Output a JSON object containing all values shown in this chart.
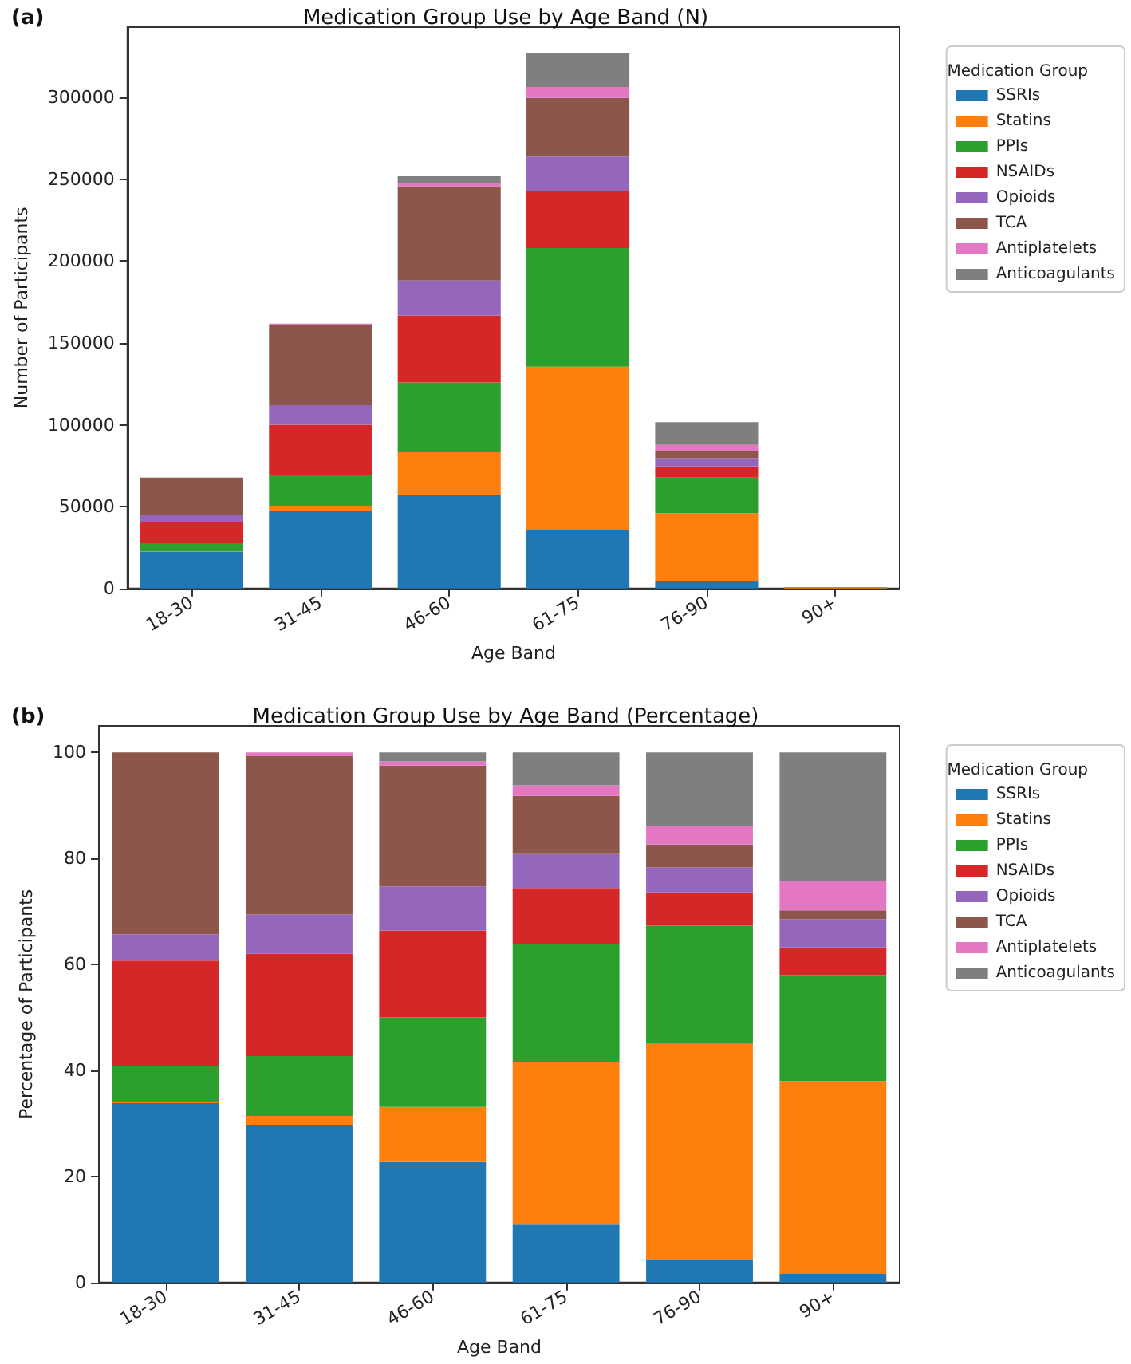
{
  "chart_data": [
    {
      "type": "bar",
      "title": "Medication Group Use by Age Band (N)",
      "annotations": [
        "(a)"
      ],
      "xlabel": "Age Band",
      "ylabel": "Number of Participants",
      "legend_title": "Medication Group",
      "legend": "right",
      "stacked": true,
      "grid": false,
      "categories": [
        "18-30",
        "31-45",
        "46-60",
        "61-75",
        "76-90",
        "90+"
      ],
      "ylim": [
        0,
        343000
      ],
      "yticks": [
        0,
        50000,
        100000,
        150000,
        200000,
        250000,
        300000
      ],
      "series": [
        {
          "name": "SSRIs",
          "color": "#1f77b4",
          "values": [
            22500,
            47400,
            57100,
            35500,
            4500,
            16
          ]
        },
        {
          "name": "Statins",
          "color": "#ff7f0e",
          "values": [
            200,
            3200,
            26100,
            100000,
            41600,
            364
          ]
        },
        {
          "name": "PPIs",
          "color": "#2ca02c",
          "values": [
            5000,
            18800,
            42600,
            72500,
            21600,
            200
          ]
        },
        {
          "name": "NSAIDs",
          "color": "#d62728",
          "values": [
            13000,
            30600,
            41000,
            34900,
            6800,
            52
          ]
        },
        {
          "name": "Opioids",
          "color": "#9467bd",
          "values": [
            4000,
            12000,
            21300,
            21000,
            5200,
            53
          ]
        },
        {
          "name": "TCA",
          "color": "#8c564b",
          "values": [
            23000,
            49000,
            57700,
            35800,
            4200,
            17
          ]
        },
        {
          "name": "Antiplatelets",
          "color": "#e377c2",
          "values": [
            0,
            800,
            1900,
            6800,
            3800,
            56
          ]
        },
        {
          "name": "Anticoagulants",
          "color": "#7f7f7f",
          "values": [
            0,
            0,
            4200,
            20900,
            13900,
            null
          ]
        }
      ]
    },
    {
      "type": "bar",
      "title": "Medication Group Use by Age Band (Percentage)",
      "annotations": [
        "(b)"
      ],
      "xlabel": "Age Band",
      "ylabel": "Percentage of Participants",
      "legend_title": "Medication Group",
      "legend": "right",
      "stacked": true,
      "grid": false,
      "categories": [
        "18-30",
        "31-45",
        "46-60",
        "61-75",
        "76-90",
        "90+"
      ],
      "ylim": [
        0,
        105
      ],
      "yticks": [
        0,
        20,
        40,
        60,
        80,
        100
      ],
      "series": [
        {
          "name": "SSRIs",
          "color": "#1f77b4",
          "values": [
            33.8,
            29.6,
            22.7,
            10.9,
            4.2,
            1.6
          ]
        },
        {
          "name": "Statins",
          "color": "#ff7f0e",
          "values": [
            0.2,
            1.8,
            10.4,
            30.6,
            40.8,
            36.4
          ]
        },
        {
          "name": "PPIs",
          "color": "#2ca02c",
          "values": [
            6.8,
            11.3,
            16.9,
            22.3,
            22.3,
            20
          ]
        },
        {
          "name": "NSAIDs",
          "color": "#d62728",
          "values": [
            19.9,
            19.3,
            16.4,
            10.6,
            6.3,
            5.2
          ]
        },
        {
          "name": "Opioids",
          "color": "#9467bd",
          "values": [
            5,
            7.4,
            8.3,
            6.4,
            4.7,
            5.3
          ]
        },
        {
          "name": "TCA",
          "color": "#8c564b",
          "values": [
            34.3,
            29.9,
            22.8,
            11,
            4.3,
            1.7
          ]
        },
        {
          "name": "Antiplatelets",
          "color": "#e377c2",
          "values": [
            0,
            0.7,
            0.8,
            2,
            3.5,
            5.6
          ]
        },
        {
          "name": "Anticoagulants",
          "color": "#7f7f7f",
          "values": [
            0,
            0,
            1.7,
            6.2,
            13.9,
            24.2
          ]
        }
      ]
    }
  ]
}
